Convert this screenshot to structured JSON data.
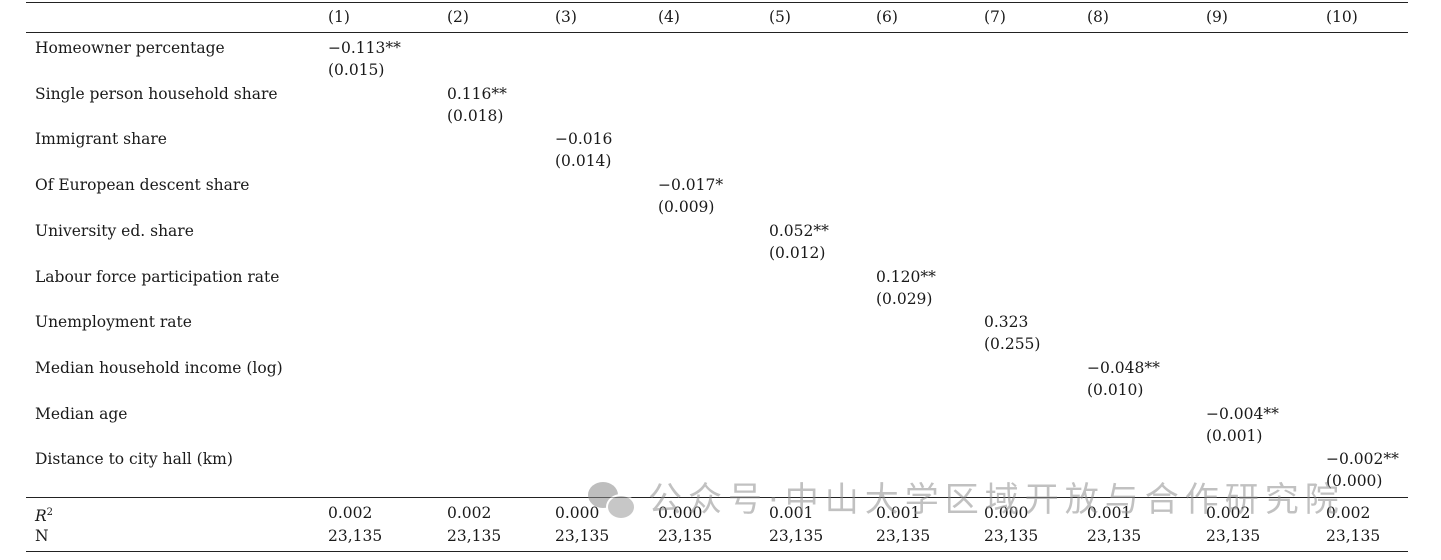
{
  "table": {
    "columns": [
      "(1)",
      "(2)",
      "(3)",
      "(4)",
      "(5)",
      "(6)",
      "(7)",
      "(8)",
      "(9)",
      "(10)"
    ],
    "rows": [
      {
        "label": "Homeowner percentage",
        "col": 0,
        "coef": "−0.113**",
        "se": "(0.015)"
      },
      {
        "label": "Single person household share",
        "col": 1,
        "coef": "0.116**",
        "se": "(0.018)"
      },
      {
        "label": "Immigrant share",
        "col": 2,
        "coef": "−0.016",
        "se": "(0.014)"
      },
      {
        "label": "Of European descent share",
        "col": 3,
        "coef": "−0.017*",
        "se": "(0.009)"
      },
      {
        "label": "University ed. share",
        "col": 4,
        "coef": "0.052**",
        "se": "(0.012)"
      },
      {
        "label": "Labour force participation rate",
        "col": 5,
        "coef": "0.120**",
        "se": "(0.029)"
      },
      {
        "label": "Unemployment rate",
        "col": 6,
        "coef": "0.323",
        "se": "(0.255)"
      },
      {
        "label": "Median household income (log)",
        "col": 7,
        "coef": "−0.048**",
        "se": "(0.010)"
      },
      {
        "label": "Median age",
        "col": 8,
        "coef": "−0.004**",
        "se": "(0.001)"
      },
      {
        "label": "Distance to city hall (km)",
        "col": 9,
        "coef": "−0.002**",
        "se": "(0.000)"
      }
    ],
    "r2": {
      "label": "R",
      "sup": "2",
      "values": [
        "0.002",
        "0.002",
        "0.000",
        "0.000",
        "0.001",
        "0.001",
        "0.000",
        "0.001",
        "0.002",
        "0.002"
      ]
    },
    "n": {
      "label": "N",
      "values": [
        "23,135",
        "23,135",
        "23,135",
        "23,135",
        "23,135",
        "23,135",
        "23,135",
        "23,135",
        "23,135",
        "23,135"
      ]
    }
  },
  "watermark": {
    "icon": "wechat-icon",
    "text": "公众号·中山大学区域开放与合作研究院"
  }
}
